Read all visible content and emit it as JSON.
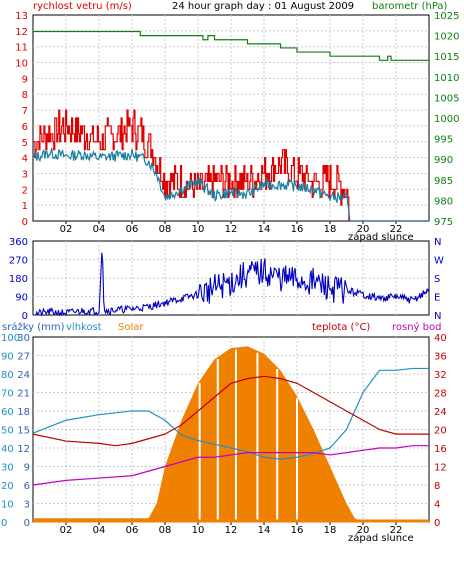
{
  "panel1": {
    "left_label": "rychlost vetru (m/s)",
    "title": "24 hour graph day : 01 August 2009",
    "right_label": "barometr (hPa)",
    "left_ticks": [
      "0",
      "1",
      "2",
      "3",
      "4",
      "5",
      "6",
      "7",
      "8",
      "9",
      "10",
      "11",
      "12",
      "13"
    ],
    "right_ticks": [
      "975",
      "980",
      "985",
      "990",
      "995",
      "1000",
      "1005",
      "1010",
      "1015",
      "1020",
      "1025"
    ],
    "x_ticks": [
      "02",
      "04",
      "06",
      "08",
      "10",
      "12",
      "14",
      "16",
      "18",
      "20",
      "22"
    ],
    "sunset_label": "západ slunce",
    "colors": {
      "wind_gust": "#e00000",
      "wind_avg": "#1a7fa0",
      "pressure": "#108010",
      "left_axis": "#e00000",
      "right_axis": "#108010"
    }
  },
  "panel2": {
    "left_ticks": [
      "0",
      "90",
      "180",
      "270",
      "360"
    ],
    "right_labels": [
      "N",
      "W",
      "S",
      "E",
      "N"
    ],
    "x_ticks": [
      "02",
      "04",
      "06",
      "08",
      "10",
      "12",
      "14",
      "16",
      "18",
      "20",
      "22"
    ],
    "colors": {
      "direction": "#0000c0",
      "axis": "#0000c0"
    }
  },
  "panel3": {
    "header": {
      "rain": "srážky (mm)",
      "humidity": "vlhkost",
      "solar": "Solar",
      "temperature": "teplota (°C)",
      "dewpoint": "rosný bod"
    },
    "rain_ticks": [
      "0",
      "3",
      "6",
      "9",
      "12",
      "15",
      "18",
      "21",
      "24",
      "27",
      "30"
    ],
    "humidity_ticks": [
      "0",
      "10",
      "20",
      "30",
      "40",
      "50",
      "60",
      "70",
      "80",
      "90",
      "100"
    ],
    "temp_ticks": [
      "0",
      "4",
      "8",
      "12",
      "16",
      "20",
      "24",
      "28",
      "32",
      "36",
      "40"
    ],
    "x_ticks": [
      "02",
      "04",
      "06",
      "08",
      "10",
      "12",
      "14",
      "16",
      "18",
      "20",
      "22"
    ],
    "sunset_label": "západ slunce",
    "colors": {
      "rain": "#3060c0",
      "humidity": "#2090c8",
      "solar": "#f08000",
      "temperature": "#c00000",
      "dewpoint": "#c000c0"
    }
  },
  "chart_data": [
    {
      "type": "line",
      "xlabel": "",
      "title": "24 hour graph day : 01 August 2009",
      "x_range": [
        0,
        24
      ],
      "y_left": {
        "label": "rychlost vetru (m/s)",
        "ylim": [
          0,
          13
        ]
      },
      "y_right": {
        "label": "barometr (hPa)",
        "ylim": [
          975,
          1025
        ]
      },
      "series": [
        {
          "axis": "left",
          "x": [
            0,
            1,
            2,
            3,
            4,
            5,
            6,
            7,
            7.5,
            8,
            9,
            10,
            11,
            12,
            13,
            14,
            15,
            16,
            17,
            18,
            19,
            19.2,
            24
          ],
          "values": [
            5,
            5.5,
            6,
            5.5,
            5,
            5.5,
            6,
            5,
            4,
            2.5,
            2.5,
            2,
            2.5,
            2.5,
            2.5,
            3,
            3.5,
            3,
            2.5,
            2.5,
            2,
            0,
            0
          ]
        },
        {
          "axis": "left",
          "x": [
            0,
            1,
            2,
            3,
            4,
            5,
            6,
            7,
            7.5,
            8,
            9,
            10,
            11,
            12,
            13,
            14,
            15,
            16,
            17,
            18,
            19,
            19.2,
            24
          ],
          "values": [
            4,
            4.3,
            4.1,
            4.2,
            4,
            4.1,
            4.2,
            3.8,
            3,
            1.5,
            2,
            2.5,
            1.6,
            1.8,
            1.7,
            2.3,
            2.3,
            2.2,
            2,
            1.5,
            1.5,
            0,
            0
          ]
        },
        {
          "axis": "right",
          "x": [
            0,
            2,
            4,
            5,
            6,
            6.5,
            8,
            9,
            10,
            10.3,
            10.6,
            11,
            12,
            13,
            14,
            15,
            16,
            17,
            18,
            19,
            20,
            21,
            21.5,
            21.7,
            22,
            24
          ],
          "values": [
            1021,
            1021,
            1021,
            1021,
            1021,
            1020,
            1020,
            1020,
            1020,
            1019,
            1020,
            1019,
            1019,
            1018,
            1018,
            1017,
            1016,
            1016,
            1015,
            1015,
            1015,
            1014,
            1015,
            1014,
            1014,
            1014
          ]
        }
      ]
    },
    {
      "type": "line",
      "xlabel": "",
      "x_range": [
        0,
        24
      ],
      "y_left": {
        "ylim": [
          0,
          360
        ]
      },
      "y_right": {
        "ticks": [
          "N",
          "W",
          "S",
          "E",
          "N"
        ]
      },
      "series": [
        {
          "x": [
            0,
            1,
            2,
            3,
            4,
            4.2,
            4.3,
            5,
            6,
            7,
            8,
            9,
            10,
            11,
            12,
            13,
            14,
            15,
            16,
            17,
            18,
            19,
            20,
            21,
            22,
            23,
            24
          ],
          "values": [
            5,
            15,
            10,
            20,
            20,
            350,
            20,
            25,
            30,
            40,
            60,
            80,
            100,
            130,
            160,
            200,
            210,
            180,
            170,
            160,
            130,
            120,
            100,
            80,
            90,
            70,
            120
          ]
        }
      ]
    },
    {
      "type": "area",
      "xlabel": "",
      "x_range": [
        0,
        24
      ],
      "y_left_rain": {
        "label": "srážky (mm)",
        "ylim": [
          0,
          30
        ]
      },
      "y_left_humidity": {
        "label": "vlhkost",
        "ylim": [
          0,
          100
        ]
      },
      "y_right": {
        "label": "teplota (°C)",
        "ylim": [
          0,
          40
        ]
      },
      "series": [
        {
          "name": "Solar",
          "x": [
            0,
            7,
            7.5,
            8,
            9,
            10,
            11,
            12,
            13,
            14,
            15,
            16,
            17,
            18,
            19,
            19.5,
            20,
            24
          ],
          "values": [
            2,
            2,
            10,
            30,
            55,
            75,
            88,
            94,
            95,
            91,
            82,
            68,
            50,
            30,
            10,
            2,
            0,
            0
          ]
        },
        {
          "name": "vlhkost",
          "x": [
            0,
            2,
            4,
            6,
            7,
            8,
            9,
            10,
            11,
            12,
            13,
            14,
            15,
            16,
            17,
            18,
            19,
            20,
            21,
            22,
            23,
            24
          ],
          "values": [
            48,
            55,
            58,
            60,
            60,
            55,
            47,
            44,
            42,
            40,
            38,
            35,
            34,
            35,
            37,
            40,
            50,
            70,
            82,
            82,
            83,
            83
          ]
        },
        {
          "name": "teplota (°C)",
          "x": [
            0,
            2,
            4,
            5,
            6,
            7,
            8,
            9,
            10,
            11,
            12,
            13,
            14,
            15,
            16,
            17,
            18,
            19,
            20,
            21,
            22,
            23,
            24
          ],
          "values": [
            19,
            17.5,
            17,
            16.5,
            17,
            18,
            19,
            21,
            24,
            27,
            30,
            31,
            31.5,
            31,
            30,
            28,
            26,
            24,
            22,
            20,
            19,
            19,
            19
          ]
        },
        {
          "name": "rosný bod",
          "x": [
            0,
            2,
            4,
            6,
            7,
            8,
            9,
            10,
            11,
            12,
            13,
            14,
            15,
            16,
            17,
            18,
            19,
            20,
            21,
            22,
            23,
            24
          ],
          "values": [
            8,
            9,
            9.5,
            10,
            11,
            12,
            13,
            14,
            14,
            14.5,
            15,
            15,
            15,
            15,
            15,
            14.5,
            15,
            15.5,
            16,
            16,
            16.5,
            16.5
          ]
        }
      ]
    }
  ]
}
